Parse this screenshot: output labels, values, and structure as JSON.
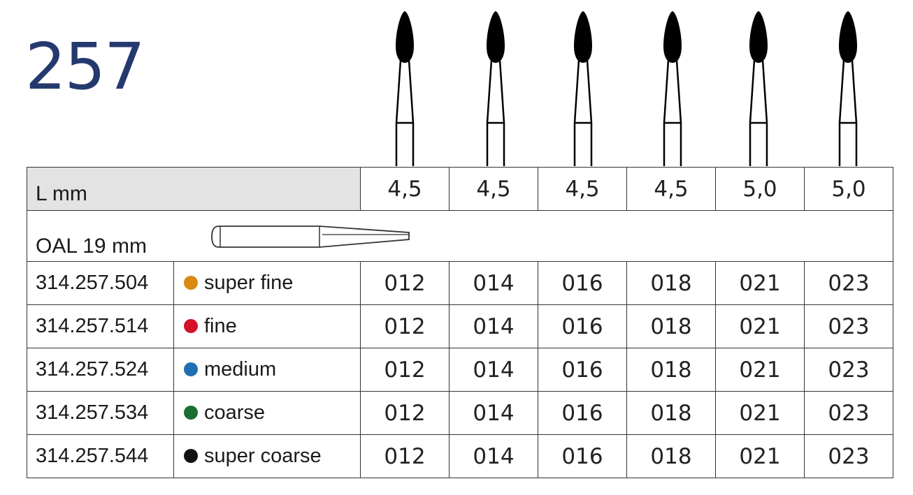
{
  "title": "257",
  "header": {
    "length_label": "L mm",
    "oal_label": "OAL 19 mm",
    "lengths": [
      "4,5",
      "4,5",
      "4,5",
      "4,5",
      "5,0",
      "5,0"
    ]
  },
  "rows": [
    {
      "ref": "314.257.504",
      "grit": "super fine",
      "color": "#d88a12",
      "sizes": [
        "012",
        "014",
        "016",
        "018",
        "021",
        "023"
      ]
    },
    {
      "ref": "314.257.514",
      "grit": "fine",
      "color": "#d4102a",
      "sizes": [
        "012",
        "014",
        "016",
        "018",
        "021",
        "023"
      ]
    },
    {
      "ref": "314.257.524",
      "grit": "medium",
      "color": "#1f6fb2",
      "sizes": [
        "012",
        "014",
        "016",
        "018",
        "021",
        "023"
      ]
    },
    {
      "ref": "314.257.534",
      "grit": "coarse",
      "color": "#1a6e31",
      "sizes": [
        "012",
        "014",
        "016",
        "018",
        "021",
        "023"
      ]
    },
    {
      "ref": "314.257.544",
      "grit": "super coarse",
      "color": "#111111",
      "sizes": [
        "012",
        "014",
        "016",
        "018",
        "021",
        "023"
      ]
    }
  ],
  "icons": {
    "bur": "flame-bur-icon",
    "shank": "fg-shank-icon"
  }
}
